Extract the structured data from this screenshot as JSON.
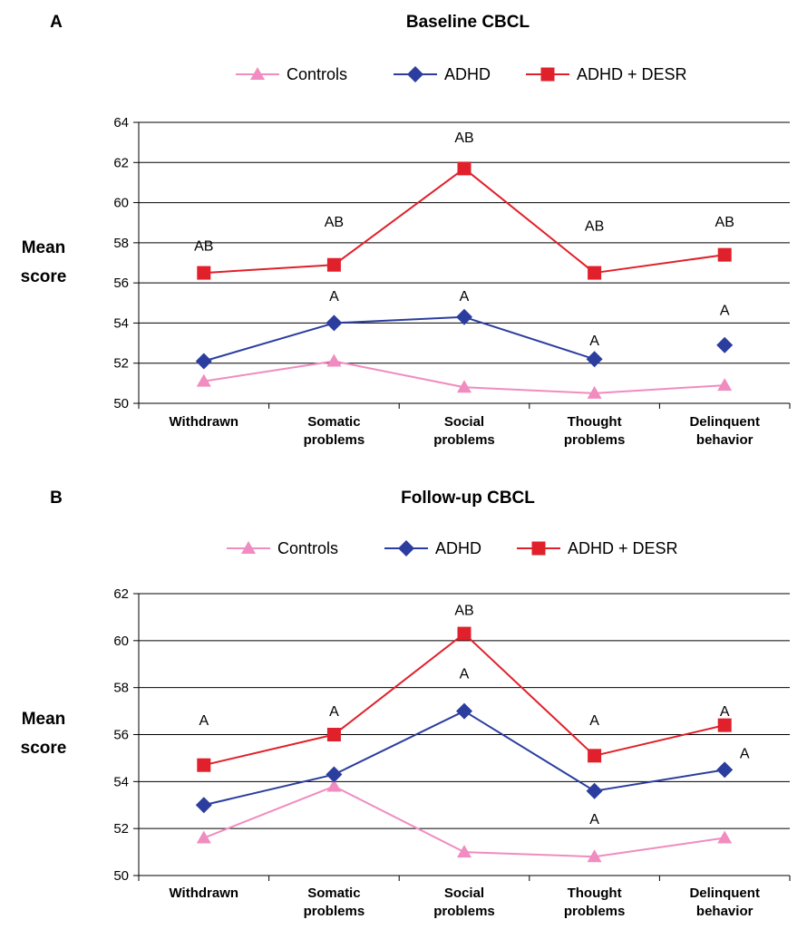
{
  "series_colors": {
    "Controls": "#f08cbf",
    "ADHD": "#2b3d9e",
    "ADHD + DESR": "#e0202a"
  },
  "chart_data": [
    {
      "panel": "A",
      "type": "line",
      "title": "Baseline CBCL",
      "ylabel": "Mean score",
      "xlabel": "",
      "ylim": [
        50,
        64
      ],
      "yticks": [
        50,
        52,
        54,
        56,
        58,
        60,
        62,
        64
      ],
      "grid": true,
      "legend_position": "top",
      "categories": [
        "Withdrawn",
        "Somatic problems",
        "Social problems",
        "Thought problems",
        "Delinquent behavior"
      ],
      "series": [
        {
          "name": "Controls",
          "marker": "triangle",
          "values": [
            51.1,
            52.1,
            50.8,
            50.5,
            50.9
          ],
          "connect": [
            true,
            true,
            true,
            true
          ]
        },
        {
          "name": "ADHD",
          "marker": "diamond",
          "values": [
            52.1,
            54.0,
            54.3,
            52.2,
            52.9
          ],
          "connect": [
            true,
            true,
            true,
            false
          ]
        },
        {
          "name": "ADHD + DESR",
          "marker": "square",
          "values": [
            56.5,
            56.9,
            61.7,
            56.5,
            57.4
          ],
          "connect": [
            true,
            true,
            true,
            true
          ]
        }
      ],
      "annotations": [
        {
          "text": "AB",
          "category": 0,
          "y": 57.6
        },
        {
          "text": "AB",
          "category": 1,
          "y": 58.8
        },
        {
          "text": "AB",
          "category": 2,
          "y": 63.0
        },
        {
          "text": "AB",
          "category": 3,
          "y": 58.6
        },
        {
          "text": "AB",
          "category": 4,
          "y": 58.8
        },
        {
          "text": "A",
          "category": 1,
          "y": 55.1
        },
        {
          "text": "A",
          "category": 2,
          "y": 55.1
        },
        {
          "text": "A",
          "category": 3,
          "y": 52.9
        },
        {
          "text": "A",
          "category": 4,
          "y": 54.4
        }
      ]
    },
    {
      "panel": "B",
      "type": "line",
      "title": "Follow-up CBCL",
      "ylabel": "Mean score",
      "xlabel": "",
      "ylim": [
        50,
        62
      ],
      "yticks": [
        50,
        52,
        54,
        56,
        58,
        60,
        62
      ],
      "grid": true,
      "legend_position": "top",
      "categories": [
        "Withdrawn",
        "Somatic problems",
        "Social problems",
        "Thought problems",
        "Delinquent behavior"
      ],
      "series": [
        {
          "name": "Controls",
          "marker": "triangle",
          "values": [
            51.6,
            53.8,
            51.0,
            50.8,
            51.6
          ],
          "connect": [
            true,
            true,
            true,
            true
          ]
        },
        {
          "name": "ADHD",
          "marker": "diamond",
          "values": [
            53.0,
            54.3,
            57.0,
            53.6,
            54.5
          ],
          "connect": [
            true,
            true,
            true,
            true
          ]
        },
        {
          "name": "ADHD + DESR",
          "marker": "square",
          "values": [
            54.7,
            56.0,
            60.3,
            55.1,
            56.4
          ],
          "connect": [
            true,
            true,
            true,
            true
          ]
        }
      ],
      "annotations": [
        {
          "text": "AB",
          "category": 2,
          "y": 61.1
        },
        {
          "text": "A",
          "category": 0,
          "y": 56.4
        },
        {
          "text": "A",
          "category": 1,
          "y": 56.8
        },
        {
          "text": "A",
          "category": 2,
          "y": 58.4
        },
        {
          "text": "A",
          "category": 3,
          "y": 56.4
        },
        {
          "text": "A",
          "category": 4,
          "y": 56.8
        },
        {
          "text": "A",
          "category": 4,
          "y": 55.0,
          "side": "right"
        },
        {
          "text": "A",
          "category": 3,
          "y": 52.2
        }
      ]
    }
  ]
}
